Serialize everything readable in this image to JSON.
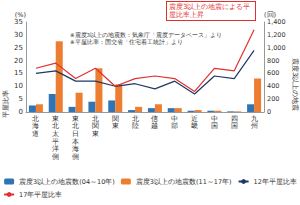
{
  "chart_data": {
    "type": "bar",
    "categories": [
      "北海道",
      "東北太平洋側",
      "東北日本海側",
      "北関東",
      "関東",
      "北陸",
      "信越",
      "中部",
      "近畿",
      "中国",
      "四国",
      "九州"
    ],
    "series": [
      {
        "name": "震度3以上の地震数(04～10年)",
        "type": "bar",
        "axis": "y2",
        "color": "#2f75b5",
        "values": [
          100,
          280,
          80,
          160,
          180,
          30,
          60,
          60,
          20,
          20,
          10,
          120
        ]
      },
      {
        "name": "震度3以上の地震数(11～17年)",
        "type": "bar",
        "axis": "y2",
        "color": "#ed7d31",
        "values": [
          120,
          1100,
          300,
          680,
          430,
          80,
          120,
          60,
          30,
          20,
          10,
          520
        ]
      },
      {
        "name": "12年平屋比率",
        "type": "line",
        "color": "#1f3864",
        "line_style": "solid",
        "values": [
          15,
          16,
          12,
          12,
          10,
          11,
          9,
          12,
          7,
          14,
          13,
          24
        ]
      },
      {
        "name": "17年平屋比率",
        "type": "line",
        "color": "#e03030",
        "line_style": "solid",
        "values": [
          17,
          19,
          13,
          17,
          10,
          13,
          14,
          13,
          8,
          17,
          16,
          32
        ]
      }
    ],
    "ylim": [
      0,
      35
    ],
    "yticks": [
      0,
      5,
      10,
      15,
      20,
      25,
      30,
      35
    ],
    "y2lim": [
      0,
      1400
    ],
    "y2ticks": [
      0,
      200,
      400,
      600,
      800,
      1000,
      1200,
      1400
    ],
    "y_label": "平屋比率",
    "y_unit": "(%)",
    "y2_label": "震度3以上の地震",
    "y2_unit": "(回)",
    "annotation": "震度3以上の地震による平屋比率上昇",
    "notes": [
      "※震度3以上の地震数：気象庁「震度データベース」より",
      "※平屋比率：国交省「住宅着工統計」より"
    ],
    "grid": false,
    "legend": "bottom"
  }
}
